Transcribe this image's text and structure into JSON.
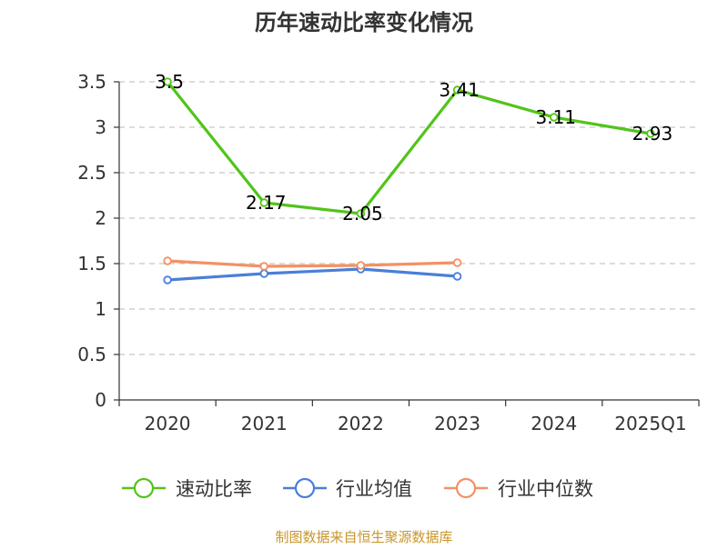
{
  "chart_data": {
    "type": "line",
    "title": "历年速动比率变化情况",
    "categories": [
      "2020",
      "2021",
      "2022",
      "2023",
      "2024",
      "2025Q1"
    ],
    "ylim": [
      0,
      3.5
    ],
    "yticks": [
      "0",
      "0.5",
      "1",
      "1.5",
      "2",
      "2.5",
      "3",
      "3.5"
    ],
    "grid": true,
    "legend_position": "bottom",
    "series": [
      {
        "name": "速动比率",
        "color": "#52c41a",
        "values": [
          3.5,
          2.17,
          2.05,
          3.41,
          3.11,
          2.93
        ],
        "labels": [
          "3.5",
          "2.17",
          "2.05",
          "3.41",
          "3.11",
          "2.93"
        ],
        "show_labels": true
      },
      {
        "name": "行业均值",
        "color": "#4a7fd8",
        "values": [
          1.32,
          1.39,
          1.44,
          1.36,
          null,
          null
        ],
        "show_labels": false
      },
      {
        "name": "行业中位数",
        "color": "#f39165",
        "values": [
          1.53,
          1.47,
          1.48,
          1.51,
          null,
          null
        ],
        "show_labels": false
      }
    ]
  },
  "source_note": "制图数据来自恒生聚源数据库"
}
